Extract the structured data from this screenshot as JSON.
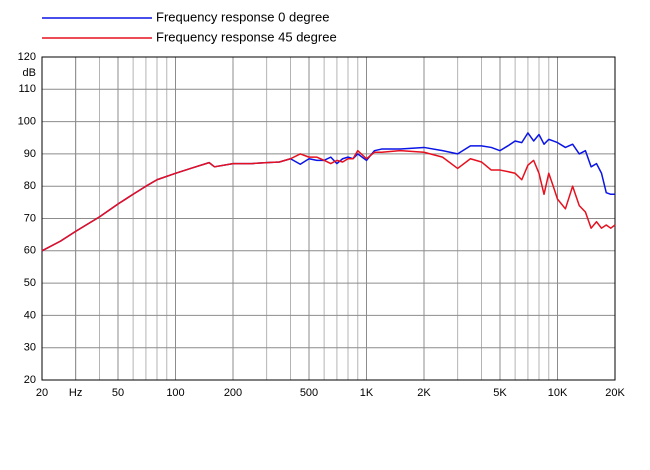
{
  "chart_data": {
    "type": "line",
    "legend_position": "top-left",
    "y_unit_label": "dB",
    "xscale": "log",
    "grid": true,
    "xlim": [
      20,
      20000
    ],
    "ylim": [
      20,
      120
    ],
    "yticks": [
      20,
      30,
      40,
      50,
      60,
      70,
      80,
      90,
      100,
      110,
      120
    ],
    "xticks": [
      20,
      {
        "value": 30,
        "label": "Hz"
      },
      50,
      100,
      200,
      500,
      {
        "value": 1000,
        "label": "1K"
      },
      {
        "value": 2000,
        "label": "2K"
      },
      {
        "value": 5000,
        "label": "5K"
      },
      {
        "value": 10000,
        "label": "10K"
      },
      {
        "value": 20000,
        "label": "20K"
      }
    ],
    "xgrid_minor": [
      30,
      40,
      60,
      70,
      80,
      90,
      300,
      400,
      600,
      700,
      800,
      900,
      3000,
      4000,
      6000,
      7000,
      8000,
      9000
    ],
    "x": [
      20,
      25,
      30,
      40,
      50,
      60,
      70,
      80,
      100,
      120,
      150,
      160,
      200,
      250,
      300,
      350,
      400,
      450,
      500,
      550,
      600,
      650,
      700,
      750,
      800,
      850,
      900,
      1000,
      1100,
      1200,
      1500,
      2000,
      2500,
      3000,
      3500,
      4000,
      4500,
      5000,
      5500,
      6000,
      6500,
      7000,
      7500,
      8000,
      8500,
      9000,
      9500,
      10000,
      11000,
      12000,
      13000,
      14000,
      15000,
      16000,
      17000,
      18000,
      19000,
      20000
    ],
    "series": [
      {
        "name": "Frequency response 0 degree",
        "color": "#0a14e6",
        "values": [
          60,
          63,
          66,
          70.5,
          74.5,
          77.5,
          80,
          82,
          84,
          85.5,
          87.3,
          86,
          87,
          87,
          87.3,
          87.5,
          88.5,
          86.8,
          88.5,
          88,
          88,
          89,
          87,
          88.5,
          89,
          88.5,
          90,
          88,
          91,
          91.5,
          91.5,
          92,
          91,
          90,
          92.5,
          92.5,
          92,
          91,
          92.5,
          94,
          93.5,
          96.5,
          94,
          96,
          93,
          94.5,
          94,
          93.5,
          92,
          93,
          90,
          91,
          86,
          87,
          84,
          78,
          77.5,
          77.5
        ]
      },
      {
        "name": "Frequency response 45 degree",
        "color": "#e6101e",
        "values": [
          60,
          63,
          66,
          70.5,
          74.5,
          77.5,
          80,
          82,
          84,
          85.5,
          87.3,
          86,
          87,
          87,
          87.3,
          87.5,
          88.5,
          90,
          89,
          89,
          88,
          87,
          88,
          87.5,
          88.5,
          88.5,
          91,
          88.5,
          90.5,
          90.5,
          91,
          90.5,
          89,
          85.5,
          88.5,
          87.5,
          85,
          85,
          84.5,
          84,
          82,
          86.5,
          88,
          84,
          77.5,
          84,
          80,
          76,
          73,
          80,
          74,
          72,
          67,
          69,
          67,
          68,
          67,
          68
        ]
      }
    ]
  }
}
